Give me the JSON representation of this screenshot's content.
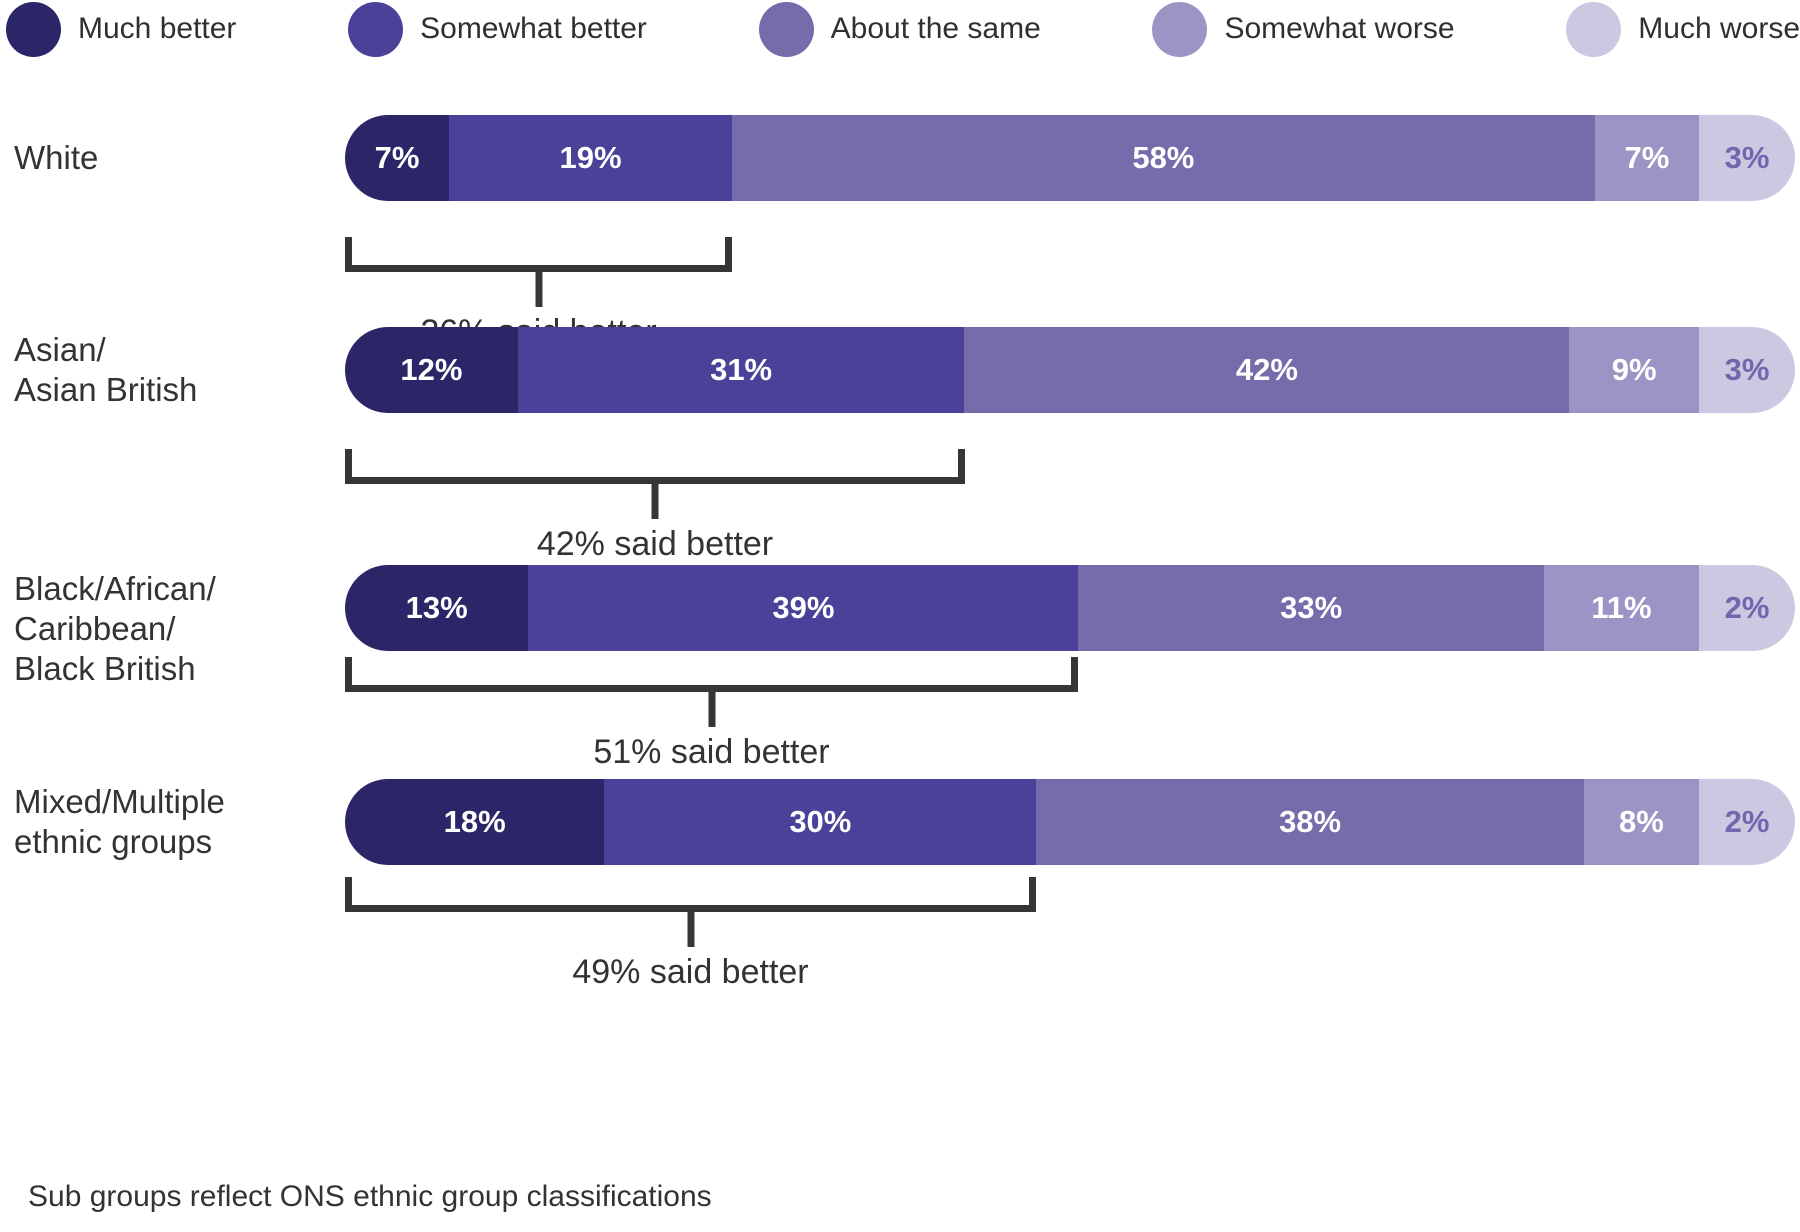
{
  "legend": {
    "items": [
      {
        "label": "Much better",
        "color": "#2B2668"
      },
      {
        "label": "Somewhat better",
        "color": "#4A4199"
      },
      {
        "label": "About the same",
        "color": "#766CAB"
      },
      {
        "label": "Somewhat worse",
        "color": "#9C94C4"
      },
      {
        "label": "Much worse",
        "color": "#CDC7E2"
      }
    ]
  },
  "chart_data": {
    "type": "bar",
    "orientation": "horizontal-stacked",
    "categories": [
      "Much better",
      "Somewhat better",
      "About the same",
      "Somewhat worse",
      "Much worse"
    ],
    "palette": [
      "#2B2668",
      "#4A4199",
      "#766CAB",
      "#9C94C4",
      "#CDC7E2"
    ],
    "muted_label_color": "#6F68AE",
    "xlim": [
      0,
      100
    ],
    "rows": [
      {
        "label_lines": [
          "White"
        ],
        "segments": [
          {
            "value": 7,
            "label": "7%"
          },
          {
            "value": 19,
            "label": "19%"
          },
          {
            "value": 58,
            "label": "58%"
          },
          {
            "value": 7,
            "label": "7%"
          },
          {
            "value": 3,
            "label": "3%"
          }
        ],
        "bracket_label": "26% said better"
      },
      {
        "label_lines": [
          "Asian/",
          "Asian British"
        ],
        "segments": [
          {
            "value": 12,
            "label": "12%"
          },
          {
            "value": 31,
            "label": "31%"
          },
          {
            "value": 42,
            "label": "42%"
          },
          {
            "value": 9,
            "label": "9%"
          },
          {
            "value": 3,
            "label": "3%"
          }
        ],
        "bracket_label": "42% said better"
      },
      {
        "label_lines": [
          "Black/African/",
          "Caribbean/",
          "Black British"
        ],
        "segments": [
          {
            "value": 13,
            "label": "13%"
          },
          {
            "value": 39,
            "label": "39%"
          },
          {
            "value": 33,
            "label": "33%"
          },
          {
            "value": 11,
            "label": "11%"
          },
          {
            "value": 2,
            "label": "2%"
          }
        ],
        "bracket_label": "51% said better"
      },
      {
        "label_lines": [
          "Mixed/Multiple",
          "ethnic groups"
        ],
        "segments": [
          {
            "value": 18,
            "label": "18%"
          },
          {
            "value": 30,
            "label": "30%"
          },
          {
            "value": 38,
            "label": "38%"
          },
          {
            "value": 8,
            "label": "8%"
          },
          {
            "value": 2,
            "label": "2%"
          }
        ],
        "bracket_label": "49% said better"
      }
    ]
  },
  "footer": {
    "note": "Sub groups reflect ONS ethnic group classifications"
  }
}
